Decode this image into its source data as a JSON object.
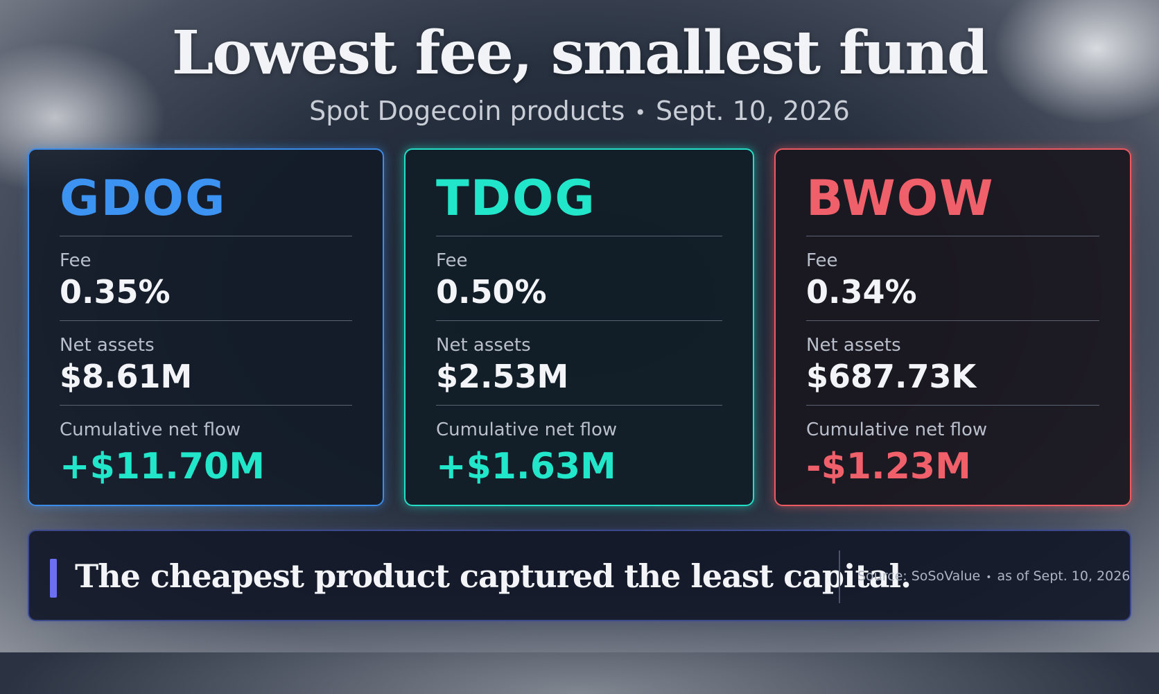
{
  "title": "Lowest fee, smallest fund",
  "subtitle": {
    "product": "Spot Dogecoin products",
    "separator": "•",
    "date": "Sept. 10, 2026"
  },
  "cards": [
    {
      "ticker": "GDOG",
      "accent_color": "#3b8be8",
      "fee_label": "Fee",
      "fee_value": "0.35%",
      "assets_label": "Net assets",
      "assets_value": "$8.61M",
      "flow_label": "Cumulative net flow",
      "flow_value": "+$11.70M"
    },
    {
      "ticker": "TDOG",
      "accent_color": "#23dfc6",
      "fee_label": "Fee",
      "fee_value": "0.50%",
      "assets_label": "Net assets",
      "assets_value": "$2.53M",
      "flow_label": "Cumulative net flow",
      "flow_value": "+$1.63M"
    },
    {
      "ticker": "BWOW",
      "accent_color": "#ee5a62",
      "fee_label": "Fee",
      "fee_value": "0.34%",
      "assets_label": "Net assets",
      "assets_value": "$687.73K",
      "flow_label": "Cumulative net flow",
      "flow_value": "-$1.23M"
    }
  ],
  "banner": {
    "takeaway": "The cheapest product captured the least capital.",
    "source": "Source: SoSoValue",
    "separator": "•",
    "as_of": "as of Sept. 10, 2026"
  },
  "colors": {
    "positive": "#22e6c9",
    "negative": "#f0606a",
    "banner_accent": "#6b6ff0"
  }
}
